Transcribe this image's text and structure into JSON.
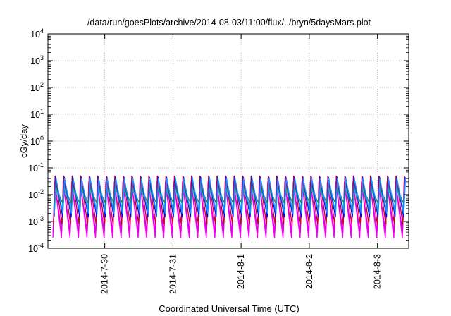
{
  "chart_data": {
    "type": "line",
    "title": "/data/run/goesPlots/archive/2014-08-03/11:00/flux/../bryn/5daysMars.plot",
    "xlabel": "Coordinated Universal Time (UTC)",
    "ylabel": "cGy/day",
    "yscale": "log",
    "ylim": [
      0.0001,
      10000
    ],
    "xlim": [
      "2014-07-29 04:00",
      "2014-08-03 11:00"
    ],
    "y_ticks": [
      {
        "base": "10",
        "exp": "-4",
        "value": 0.0001
      },
      {
        "base": "10",
        "exp": "-3",
        "value": 0.001
      },
      {
        "base": "10",
        "exp": "-2",
        "value": 0.01
      },
      {
        "base": "10",
        "exp": "-1",
        "value": 0.1
      },
      {
        "base": "10",
        "exp": "0",
        "value": 1
      },
      {
        "base": "10",
        "exp": "1",
        "value": 10
      },
      {
        "base": "10",
        "exp": "2",
        "value": 100
      },
      {
        "base": "10",
        "exp": "3",
        "value": 1000
      },
      {
        "base": "10",
        "exp": "4",
        "value": 10000
      }
    ],
    "x_ticks": [
      {
        "label": "2014-7-30",
        "day": 1
      },
      {
        "label": "2014-7-31",
        "day": 2
      },
      {
        "label": "2014-8-1",
        "day": 3
      },
      {
        "label": "2014-8-2",
        "day": 4
      },
      {
        "label": "2014-8-3",
        "day": 5
      }
    ],
    "grid": true,
    "oscillation_period_hours": 3,
    "series": [
      {
        "color": "#ff00ff",
        "peak": 0.03,
        "trough": 0.00025
      },
      {
        "color": "#dd00dd",
        "peak": 0.025,
        "trough": 0.0004
      },
      {
        "color": "#cc0033",
        "peak": 0.05,
        "trough": 0.0008
      },
      {
        "color": "#00bfbf",
        "peak": 0.02,
        "trough": 0.003
      },
      {
        "color": "#2e8b57",
        "peak": 0.02,
        "trough": 0.005
      },
      {
        "color": "#0000ee",
        "peak": 0.045,
        "trough": 0.0015
      },
      {
        "color": "#1e90ff",
        "peak": 0.04,
        "trough": 0.002
      }
    ]
  }
}
